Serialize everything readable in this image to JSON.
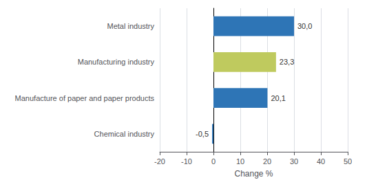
{
  "chart_data": {
    "type": "bar",
    "orientation": "horizontal",
    "categories": [
      "Metal industry",
      "Manufacturing industry",
      "Manufacture of paper and paper products",
      "Chemical industry"
    ],
    "values": [
      30.0,
      23.3,
      20.1,
      -0.5
    ],
    "value_labels": [
      "30,0",
      "23,3",
      "20,1",
      "-0,5"
    ],
    "colors": [
      "#2E75B6",
      "#BFCA5E",
      "#2E75B6",
      "#2E75B6"
    ],
    "xlabel": "Change %",
    "xlim": [
      -20,
      50
    ],
    "xticks": [
      -20,
      -10,
      0,
      10,
      20,
      30,
      40,
      50
    ],
    "grid": true,
    "data_labels": true
  }
}
